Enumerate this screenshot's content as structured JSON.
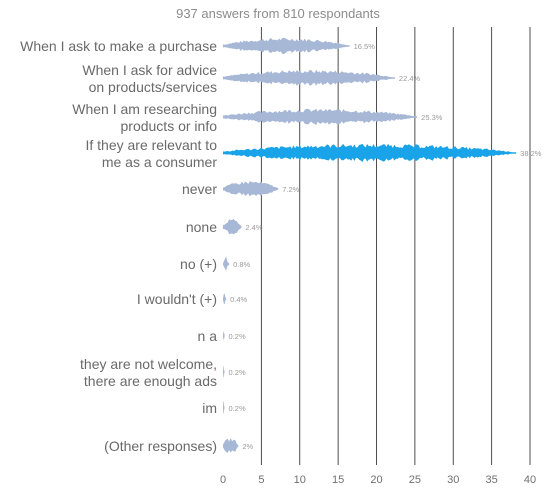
{
  "chart_data": {
    "type": "bar",
    "subtitle": "937 answers from 810 respondants",
    "categories": [
      [
        "When I ask to make a purchase"
      ],
      [
        "When I ask for advice",
        "on products/services"
      ],
      [
        "When I am researching",
        "products or info"
      ],
      [
        "If they are relevant to",
        "me as a consumer"
      ],
      [
        "never"
      ],
      [
        "none"
      ],
      [
        "no (+)"
      ],
      [
        "I wouldn't (+)"
      ],
      [
        "n a"
      ],
      [
        "they are not welcome,",
        "there are enough ads"
      ],
      [
        "im"
      ],
      [
        "(Other responses)"
      ]
    ],
    "values": [
      16.5,
      22.4,
      25.3,
      38.2,
      7.2,
      2.4,
      0.8,
      0.4,
      0.2,
      0.2,
      0.2,
      2
    ],
    "value_labels": [
      "16.5%",
      "22.4%",
      "25.3%",
      "38.2%",
      "7.2%",
      "2.4%",
      "0.8%",
      "0.4%",
      "0.2%",
      "0.2%",
      "0.2%",
      "2%"
    ],
    "highlight_index": 3,
    "xticks": [
      0,
      5,
      10,
      15,
      20,
      25,
      30,
      35,
      40
    ],
    "xlim": [
      0,
      40
    ],
    "grid": true,
    "colors": {
      "default": "#a7b7d6",
      "highlight": "#19a3e8",
      "grid": "#3a3a3a"
    }
  }
}
